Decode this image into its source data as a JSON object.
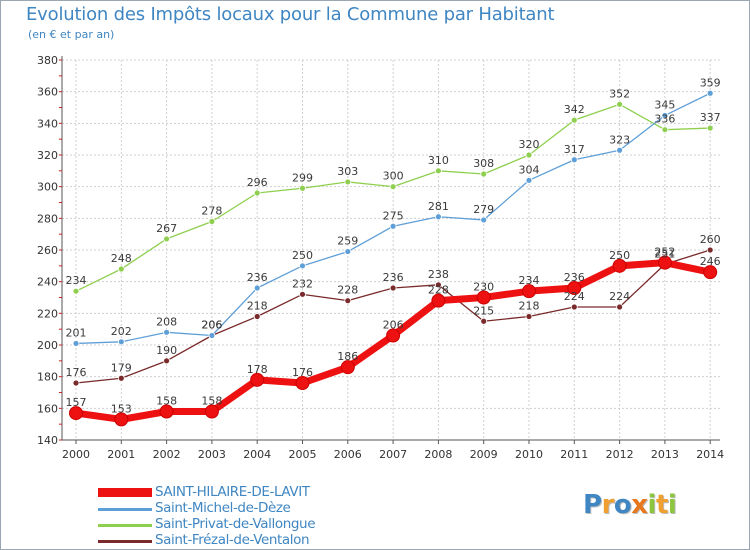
{
  "title": "Evolution des Impôts locaux pour la Commune par Habitant",
  "subtitle": "(en € et par an)",
  "logo": {
    "text": "Proxiti",
    "letters": [
      {
        "ch": "P",
        "color": "#3f86c2"
      },
      {
        "ch": "r",
        "color": "#f0a030"
      },
      {
        "ch": "o",
        "color": "#3f86c2"
      },
      {
        "ch": "x",
        "color": "#e8781e"
      },
      {
        "ch": "i",
        "color": "#8cc63e"
      },
      {
        "ch": "t",
        "color": "#f0a030"
      },
      {
        "ch": "i",
        "color": "#8cc63e"
      }
    ]
  },
  "chart_data": {
    "type": "line",
    "title": "Evolution des Impôts locaux pour la Commune par Habitant",
    "xlabel": "",
    "ylabel": "",
    "ylim": [
      140,
      380
    ],
    "y_ticks": [
      140,
      160,
      180,
      200,
      220,
      240,
      260,
      280,
      300,
      320,
      340,
      360,
      380
    ],
    "x": [
      "2000",
      "2001",
      "2002",
      "2003",
      "2004",
      "2005",
      "2006",
      "2007",
      "2008",
      "2009",
      "2010",
      "2011",
      "2012",
      "2013",
      "2014"
    ],
    "grid": true,
    "legend_position": "bottom-left",
    "series": [
      {
        "name": "SAINT-HILAIRE-DE-LAVIT",
        "color": "#ee1111",
        "values": [
          157,
          153,
          158,
          158,
          178,
          176,
          186,
          206,
          228,
          230,
          234,
          236,
          250,
          252,
          246
        ]
      },
      {
        "name": "Saint-Michel-de-Dèze",
        "color": "#5f9fd8",
        "values": [
          201,
          202,
          208,
          206,
          236,
          250,
          259,
          275,
          281,
          279,
          304,
          317,
          323,
          345,
          359
        ]
      },
      {
        "name": "Saint-Privat-de-Vallongue",
        "color": "#8fcf4f",
        "values": [
          234,
          248,
          267,
          278,
          296,
          299,
          303,
          300,
          310,
          308,
          320,
          342,
          352,
          336,
          337
        ]
      },
      {
        "name": "Saint-Frézal-de-Ventalon",
        "color": "#7a2a2a",
        "values": [
          176,
          179,
          190,
          206,
          218,
          232,
          228,
          236,
          238,
          215,
          218,
          224,
          224,
          251,
          260
        ]
      }
    ]
  }
}
